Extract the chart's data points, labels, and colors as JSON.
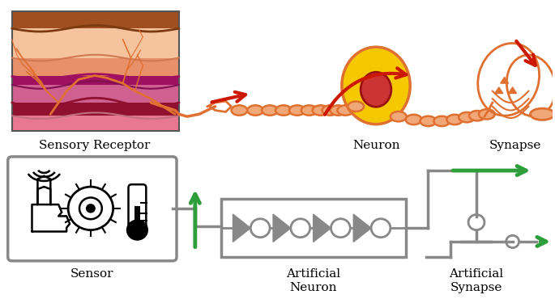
{
  "fig_width": 6.85,
  "fig_height": 3.7,
  "dpi": 100,
  "bg_color": "#ffffff",
  "top_labels": [
    "Sensory Receptor",
    "Neuron",
    "Synapse"
  ],
  "bottom_labels": [
    "Sensor",
    "Artificial\nNeuron",
    "Artificial\nSynapse"
  ],
  "gray_color": "#888888",
  "orange_color": "#E07030",
  "orange_light": "#F0A878",
  "red_color": "#CC1800",
  "green_color": "#2E9E3A",
  "skin_light": "#F5C49E",
  "skin_mid": "#E8906A",
  "skin_pink": "#E87890",
  "brown_top": "#A05020",
  "magenta_dark": "#A01060",
  "magenta_light": "#D06090",
  "pink_bottom": "#E8A0A8",
  "dark_red_layer": "#901030",
  "yellow_neuron": "#F5C800",
  "red_nucleus": "#CC3333",
  "label_fontsize": 11
}
